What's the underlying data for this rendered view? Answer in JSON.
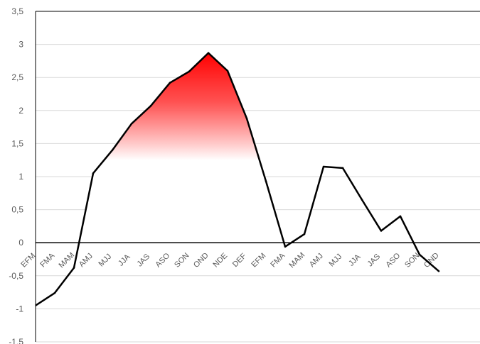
{
  "chart_data": {
    "type": "line",
    "title": "",
    "xlabel": "",
    "ylabel": "",
    "ylim": [
      -1.5,
      3.5
    ],
    "ytick_step": 0.5,
    "ytick_labels": [
      "-1,5",
      "-1",
      "-0,5",
      "0",
      "0,5",
      "1",
      "1,5",
      "2",
      "2,5",
      "3",
      "3,5"
    ],
    "grid": true,
    "legend": "none",
    "line_color": "#000000",
    "fill_color": "#ff0000",
    "categories": [
      "EFM",
      "FMA",
      "MAM",
      "AMJ",
      "MJJ",
      "JJA",
      "JAS",
      "ASO",
      "SON",
      "OND",
      "NDE",
      "DEF",
      "EFM",
      "FMA",
      "MAM",
      "AMJ",
      "MJJ",
      "JJA",
      "JAS",
      "ASO",
      "SON",
      "OND"
    ],
    "series": [
      {
        "values": [
          -0.95,
          -0.76,
          -0.38,
          1.05,
          1.4,
          1.8,
          2.07,
          2.42,
          2.59,
          2.87,
          2.6,
          1.88,
          0.93,
          -0.06,
          0.13,
          1.15,
          1.13,
          0.65,
          0.18,
          0.4,
          -0.18,
          -0.43
        ]
      }
    ]
  }
}
